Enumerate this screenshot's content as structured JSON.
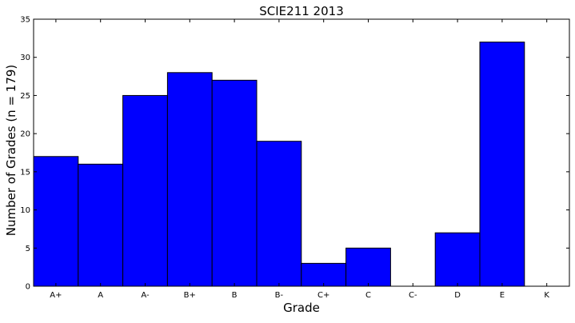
{
  "chart_data": {
    "type": "bar",
    "title": "SCIE211 2013",
    "xlabel": "Grade",
    "ylabel": "Number of Grades (n = 179)",
    "categories": [
      "A+",
      "A",
      "A-",
      "B+",
      "B",
      "B-",
      "C+",
      "C",
      "C-",
      "D",
      "E",
      "K"
    ],
    "values": [
      17,
      16,
      25,
      28,
      27,
      19,
      3,
      5,
      0,
      7,
      32,
      0
    ],
    "ylim": [
      0,
      35
    ],
    "yticks": [
      0,
      5,
      10,
      15,
      20,
      25,
      30,
      35
    ],
    "bar_color": "#0000ff",
    "edge_color": "#000000",
    "grid": false
  }
}
